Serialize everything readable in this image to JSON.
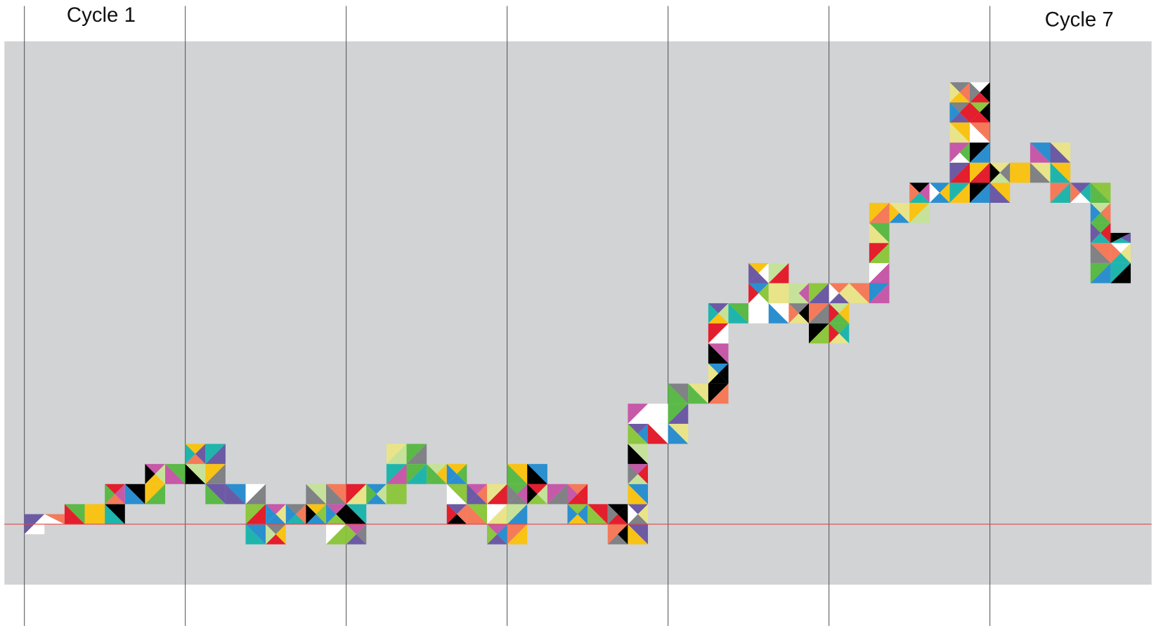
{
  "chart_data": {
    "type": "mosaic",
    "labels": [
      "Cycle 1",
      "Cycle 7"
    ],
    "values": [
      [
        -0.5,
        0.5
      ],
      [
        0,
        0.5
      ],
      [
        0,
        1
      ],
      [
        0,
        1
      ],
      [
        0,
        2
      ],
      [
        1,
        2
      ],
      [
        1,
        3
      ],
      [
        2,
        3
      ],
      [
        2,
        4
      ],
      [
        1,
        4
      ],
      [
        1,
        2
      ],
      [
        -1,
        2
      ],
      [
        -1,
        1
      ],
      [
        0,
        1
      ],
      [
        0,
        2
      ],
      [
        -1,
        2
      ],
      [
        -1,
        2
      ],
      [
        1,
        2
      ],
      [
        1,
        4
      ],
      [
        2,
        4
      ],
      [
        2,
        3
      ],
      [
        0,
        3
      ],
      [
        0,
        2
      ],
      [
        -1,
        2
      ],
      [
        -1,
        3
      ],
      [
        1,
        3
      ],
      [
        1,
        2
      ],
      [
        0,
        2
      ],
      [
        0,
        1
      ],
      [
        -1,
        1
      ],
      [
        -1,
        6
      ],
      [
        4,
        6
      ],
      [
        4,
        7
      ],
      [
        6,
        7
      ],
      [
        6,
        11
      ],
      [
        10,
        11
      ],
      [
        10,
        13
      ],
      [
        10,
        13
      ],
      [
        10,
        12
      ],
      [
        9,
        12
      ],
      [
        9,
        12
      ],
      [
        11,
        12
      ],
      [
        11,
        16
      ],
      [
        15,
        16
      ],
      [
        15,
        17
      ],
      [
        16,
        17
      ],
      [
        16,
        22
      ],
      [
        16,
        22
      ],
      [
        16,
        18
      ],
      [
        17,
        18
      ],
      [
        17,
        19
      ],
      [
        16,
        19
      ],
      [
        16,
        17
      ],
      [
        12,
        17
      ],
      [
        12,
        14.5
      ]
    ],
    "colors": [
      "#000000",
      "#e31e2d",
      "#f9c315",
      "#8dc63f",
      "#6c5aa5",
      "#1fb5ad",
      "#808285",
      "#ffffff",
      "#2b8fcf",
      "#f47a5a",
      "#c6e29a",
      "#c659a8",
      "#5bb947",
      "#e9e48a"
    ],
    "background": "#d1d3d4",
    "baseline_color": "#e0464a"
  }
}
